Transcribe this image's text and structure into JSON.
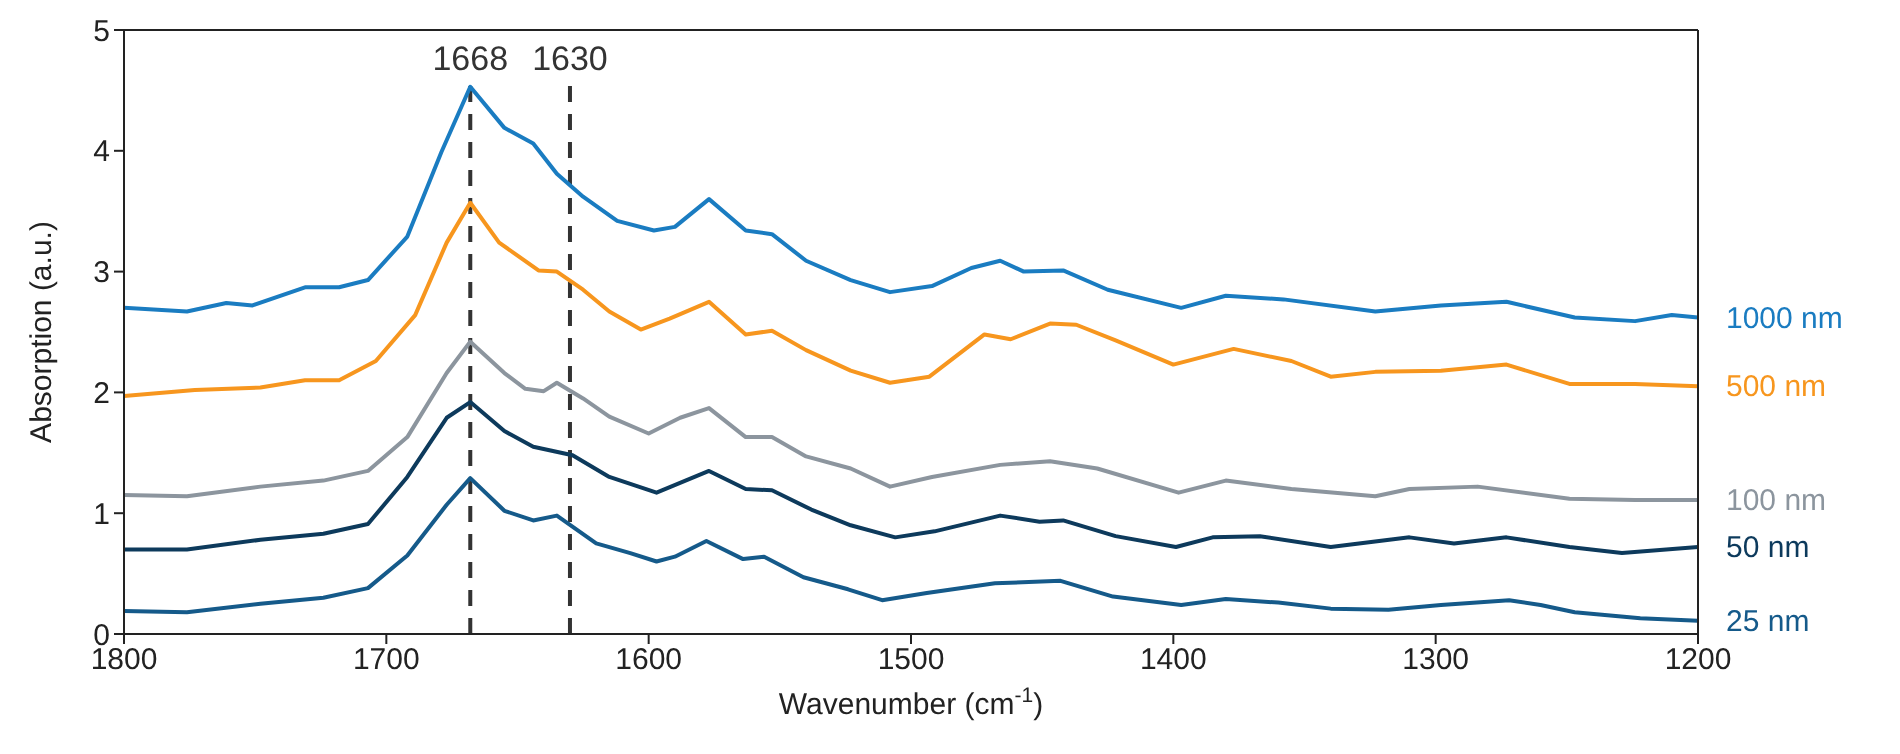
{
  "chart_data": {
    "type": "line",
    "xlabel": "Wavenumber (cm$^{-1}$)",
    "ylabel": "Absorption (a.u.)",
    "xlim": [
      1800,
      1200
    ],
    "xticks": [
      1800,
      1700,
      1600,
      1500,
      1400,
      1300,
      1200
    ],
    "ylim": [
      0,
      5
    ],
    "yticks": [
      0,
      1,
      2,
      3,
      4,
      5
    ],
    "marker": "none",
    "line_style": "solid",
    "ref_lines": [
      {
        "axis": "x",
        "value": 1668,
        "label": "1668",
        "color": "#333333",
        "line_style": "dashed"
      },
      {
        "axis": "x",
        "value": 1630,
        "label": "1630",
        "color": "#333333",
        "line_style": "dashed"
      }
    ],
    "series": [
      {
        "name": "1000 nm",
        "color": "#1a7cc1",
        "x": [
          1800,
          1776,
          1761,
          1751,
          1731,
          1718,
          1707,
          1692,
          1679,
          1668,
          1655,
          1644,
          1635,
          1625,
          1612,
          1598,
          1590,
          1577,
          1563,
          1553,
          1540,
          1523,
          1508,
          1492,
          1477,
          1466,
          1457,
          1442,
          1425,
          1397,
          1380,
          1358,
          1323,
          1298,
          1273,
          1247,
          1224,
          1210,
          1200
        ],
        "values": [
          2.7,
          2.67,
          2.74,
          2.72,
          2.87,
          2.87,
          2.93,
          3.29,
          3.99,
          4.53,
          4.19,
          4.06,
          3.81,
          3.62,
          3.42,
          3.34,
          3.37,
          3.6,
          3.34,
          3.31,
          3.09,
          2.93,
          2.83,
          2.88,
          3.03,
          3.09,
          3.0,
          3.01,
          2.85,
          2.7,
          2.8,
          2.77,
          2.67,
          2.72,
          2.75,
          2.62,
          2.59,
          2.64,
          2.62
        ]
      },
      {
        "name": "500 nm",
        "color": "#f7961e",
        "x": [
          1800,
          1773,
          1748,
          1731,
          1718,
          1704,
          1689,
          1677,
          1668,
          1657,
          1642,
          1635,
          1625,
          1615,
          1603,
          1592,
          1577,
          1563,
          1553,
          1540,
          1523,
          1508,
          1493,
          1472,
          1462,
          1447,
          1437,
          1422,
          1400,
          1377,
          1355,
          1340,
          1323,
          1298,
          1273,
          1249,
          1224,
          1200
        ],
        "values": [
          1.97,
          2.02,
          2.04,
          2.1,
          2.1,
          2.26,
          2.64,
          3.24,
          3.57,
          3.24,
          3.01,
          3.0,
          2.85,
          2.67,
          2.52,
          2.61,
          2.75,
          2.48,
          2.51,
          2.35,
          2.18,
          2.08,
          2.13,
          2.48,
          2.44,
          2.57,
          2.56,
          2.43,
          2.23,
          2.36,
          2.26,
          2.13,
          2.17,
          2.18,
          2.23,
          2.07,
          2.07,
          2.05
        ]
      },
      {
        "name": "100 nm",
        "color": "#8c959e",
        "x": [
          1800,
          1776,
          1748,
          1724,
          1707,
          1692,
          1677,
          1668,
          1655,
          1647,
          1640,
          1635,
          1625,
          1615,
          1600,
          1588,
          1577,
          1563,
          1553,
          1540,
          1523,
          1508,
          1492,
          1466,
          1447,
          1429,
          1398,
          1380,
          1355,
          1323,
          1310,
          1284,
          1249,
          1224,
          1200
        ],
        "values": [
          1.15,
          1.14,
          1.22,
          1.27,
          1.35,
          1.63,
          2.16,
          2.42,
          2.16,
          2.03,
          2.01,
          2.08,
          1.95,
          1.8,
          1.66,
          1.79,
          1.87,
          1.63,
          1.63,
          1.47,
          1.37,
          1.22,
          1.3,
          1.4,
          1.43,
          1.37,
          1.17,
          1.27,
          1.2,
          1.14,
          1.2,
          1.22,
          1.12,
          1.11,
          1.11
        ]
      },
      {
        "name": "50 nm",
        "color": "#0d3a5c",
        "x": [
          1800,
          1776,
          1748,
          1724,
          1707,
          1692,
          1677,
          1668,
          1655,
          1644,
          1629,
          1615,
          1597,
          1577,
          1563,
          1553,
          1538,
          1523,
          1506,
          1491,
          1466,
          1451,
          1442,
          1422,
          1399,
          1385,
          1367,
          1340,
          1310,
          1293,
          1273,
          1249,
          1229,
          1200
        ],
        "values": [
          0.7,
          0.7,
          0.78,
          0.83,
          0.91,
          1.3,
          1.79,
          1.92,
          1.68,
          1.55,
          1.48,
          1.3,
          1.17,
          1.35,
          1.2,
          1.19,
          1.03,
          0.9,
          0.8,
          0.85,
          0.98,
          0.93,
          0.94,
          0.81,
          0.72,
          0.8,
          0.81,
          0.72,
          0.8,
          0.75,
          0.8,
          0.72,
          0.67,
          0.72
        ]
      },
      {
        "name": "25 nm",
        "color": "#155a8a",
        "x": [
          1800,
          1776,
          1748,
          1724,
          1707,
          1692,
          1677,
          1668,
          1655,
          1644,
          1635,
          1620,
          1607,
          1597,
          1590,
          1578,
          1564,
          1556,
          1541,
          1524,
          1511,
          1494,
          1468,
          1443,
          1423,
          1397,
          1380,
          1360,
          1340,
          1318,
          1298,
          1272,
          1260,
          1247,
          1222,
          1200
        ],
        "values": [
          0.19,
          0.18,
          0.25,
          0.3,
          0.38,
          0.65,
          1.07,
          1.29,
          1.02,
          0.94,
          0.98,
          0.75,
          0.67,
          0.6,
          0.64,
          0.77,
          0.62,
          0.64,
          0.47,
          0.37,
          0.28,
          0.34,
          0.42,
          0.44,
          0.31,
          0.24,
          0.29,
          0.26,
          0.21,
          0.2,
          0.24,
          0.28,
          0.24,
          0.18,
          0.13,
          0.11
        ]
      }
    ]
  }
}
